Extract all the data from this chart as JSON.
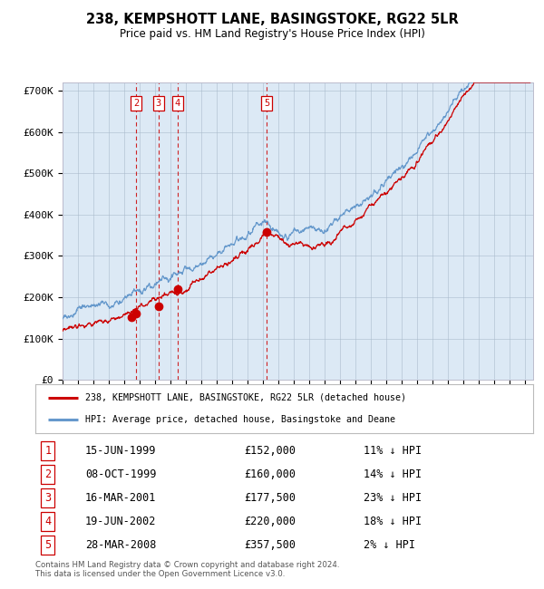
{
  "title": "238, KEMPSHOTT LANE, BASINGSTOKE, RG22 5LR",
  "subtitle": "Price paid vs. HM Land Registry's House Price Index (HPI)",
  "background_color": "#dce9f5",
  "plot_bg_color": "#dce9f5",
  "ylim": [
    0,
    720000
  ],
  "yticks": [
    0,
    100000,
    200000,
    300000,
    400000,
    500000,
    600000,
    700000
  ],
  "ytick_labels": [
    "£0",
    "£100K",
    "£200K",
    "£300K",
    "£400K",
    "£500K",
    "£600K",
    "£700K"
  ],
  "legend_line1": "238, KEMPSHOTT LANE, BASINGSTOKE, RG22 5LR (detached house)",
  "legend_line2": "HPI: Average price, detached house, Basingstoke and Deane",
  "footer": "Contains HM Land Registry data © Crown copyright and database right 2024.\nThis data is licensed under the Open Government Licence v3.0.",
  "sales": [
    {
      "num": 1,
      "date": "15-JUN-1999",
      "price": 152000,
      "pct": "11% ↓ HPI",
      "year": 1999.46
    },
    {
      "num": 2,
      "date": "08-OCT-1999",
      "price": 160000,
      "pct": "14% ↓ HPI",
      "year": 1999.77
    },
    {
      "num": 3,
      "date": "16-MAR-2001",
      "price": 177500,
      "pct": "23% ↓ HPI",
      "year": 2001.21
    },
    {
      "num": 4,
      "date": "19-JUN-2002",
      "price": 220000,
      "pct": "18% ↓ HPI",
      "year": 2002.46
    },
    {
      "num": 5,
      "date": "28-MAR-2008",
      "price": 357500,
      "pct": "2% ↓ HPI",
      "year": 2008.24
    }
  ],
  "red_line_color": "#cc0000",
  "blue_line_color": "#6699cc",
  "dashed_vline_color": "#cc0000",
  "grid_color": "#aabbcc",
  "shown_in_chart": [
    2,
    3,
    4,
    5
  ],
  "start_year": 1995,
  "end_year": 2025
}
